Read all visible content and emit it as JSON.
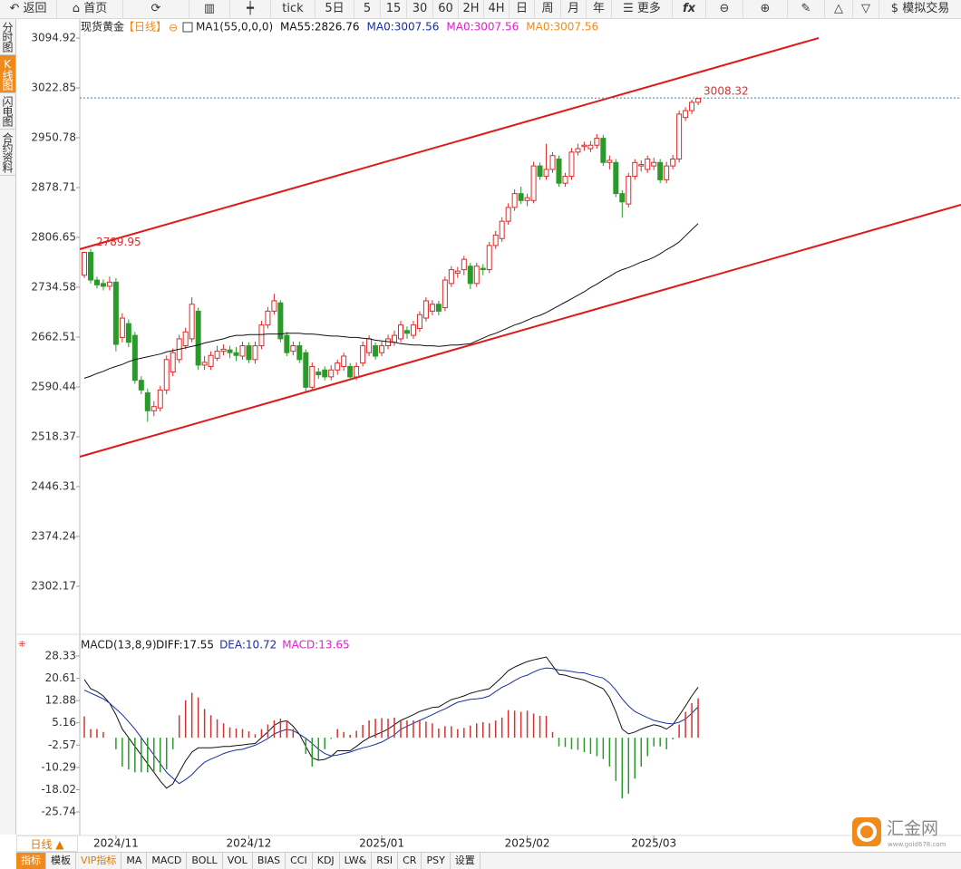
{
  "toolbar": [
    "返回",
    "首页",
    "tick",
    "5日",
    "5",
    "15",
    "30",
    "60",
    "2H",
    "4H",
    "日",
    "周",
    "月",
    "年",
    "更多",
    "fx",
    "模拟交易"
  ],
  "sidebar": [
    "分时图",
    "K线图",
    "闪电图",
    "合约资料"
  ],
  "period_tab": "日线 ▲",
  "indicator_tabs": [
    "指标",
    "模板",
    "VIP指标",
    "MA",
    "MACD",
    "BOLL",
    "VOL",
    "BIAS",
    "CCI",
    "KDJ",
    "LW&",
    "RSI",
    "CR",
    "PSY",
    "设置"
  ],
  "logo": {
    "name": "汇金网",
    "url": "www.gold678.com"
  },
  "chart_data": [
    {
      "type": "candlestick",
      "title": "现货黄金",
      "period": "【日线】",
      "indicator": "MA1(55,0,0,0)",
      "up_color": "#e02828",
      "down_color": "#2a9a2a",
      "categories": [
        null,
        null,
        null,
        null,
        null,
        "2024/11",
        null,
        null,
        null,
        null,
        null,
        null,
        null,
        null,
        null,
        null,
        null,
        null,
        null,
        null,
        null,
        null,
        null,
        null,
        null,
        null,
        "2024/12",
        null,
        null,
        null,
        null,
        null,
        null,
        null,
        null,
        null,
        null,
        null,
        null,
        null,
        null,
        null,
        null,
        null,
        null,
        null,
        null,
        "2025/01",
        null,
        null,
        null,
        null,
        null,
        null,
        null,
        null,
        null,
        null,
        null,
        null,
        null,
        null,
        null,
        null,
        null,
        null,
        null,
        null,
        null,
        null,
        "2025/02",
        null,
        null,
        null,
        null,
        null,
        null,
        null,
        null,
        null,
        null,
        null,
        null,
        null,
        null,
        null,
        null,
        null,
        null,
        null,
        "2025/03",
        null,
        null,
        null,
        null,
        null,
        null,
        null
      ],
      "open": [
        2752,
        2785,
        2745,
        2740,
        2736,
        2742,
        2662,
        2682,
        2665,
        2600,
        2582,
        2556,
        2560,
        2586,
        2612,
        2630,
        2650,
        2660,
        2700,
        2622,
        2620,
        2632,
        2642,
        2644,
        2640,
        2635,
        2650,
        2630,
        2650,
        2680,
        2700,
        2712,
        2665,
        2642,
        2650,
        2640,
        2590,
        2612,
        2615,
        2605,
        2615,
        2620,
        2620,
        2605,
        2625,
        2640,
        2650,
        2640,
        2650,
        2655,
        2660,
        2672,
        2665,
        2675,
        2690,
        2700,
        2710,
        2705,
        2740,
        2755,
        2760,
        2765,
        2740,
        2762,
        2760,
        2795,
        2805,
        2830,
        2850,
        2870,
        2860,
        2860,
        2910,
        2895,
        2905,
        2920,
        2885,
        2895,
        2930,
        2938,
        2935,
        2940,
        2950,
        2915,
        2915,
        2870,
        2855,
        2895,
        2910,
        2905,
        2910,
        2915,
        2890,
        2910,
        2920,
        2980,
        2990,
        3002
      ],
      "high": [
        2786,
        2789.95,
        2750,
        2746,
        2750,
        2748,
        2697,
        2688,
        2670,
        2606,
        2588,
        2570,
        2592,
        2636,
        2646,
        2666,
        2676,
        2720,
        2705,
        2635,
        2642,
        2650,
        2652,
        2650,
        2648,
        2656,
        2655,
        2656,
        2686,
        2706,
        2725,
        2716,
        2670,
        2656,
        2656,
        2645,
        2626,
        2618,
        2620,
        2622,
        2630,
        2640,
        2625,
        2626,
        2656,
        2665,
        2655,
        2656,
        2666,
        2672,
        2686,
        2678,
        2686,
        2700,
        2720,
        2716,
        2715,
        2750,
        2765,
        2764,
        2780,
        2770,
        2770,
        2768,
        2800,
        2816,
        2836,
        2856,
        2876,
        2880,
        2870,
        2916,
        2915,
        2942,
        2930,
        2925,
        2900,
        2936,
        2942,
        2945,
        2946,
        2956,
        2955,
        2925,
        2920,
        2875,
        2900,
        2920,
        2918,
        2925,
        2922,
        2920,
        2916,
        2926,
        2990,
        2995,
        3006,
        3008.32
      ],
      "low": [
        2748,
        2740,
        2733,
        2730,
        2730,
        2642,
        2655,
        2648,
        2595,
        2580,
        2540,
        2548,
        2555,
        2580,
        2606,
        2625,
        2645,
        2655,
        2615,
        2615,
        2615,
        2628,
        2636,
        2632,
        2628,
        2630,
        2625,
        2624,
        2645,
        2675,
        2695,
        2655,
        2635,
        2636,
        2625,
        2584,
        2585,
        2602,
        2600,
        2600,
        2608,
        2614,
        2600,
        2600,
        2620,
        2635,
        2630,
        2635,
        2645,
        2650,
        2655,
        2660,
        2660,
        2670,
        2685,
        2694,
        2694,
        2700,
        2735,
        2748,
        2752,
        2732,
        2735,
        2752,
        2755,
        2790,
        2800,
        2825,
        2845,
        2855,
        2852,
        2856,
        2890,
        2890,
        2900,
        2880,
        2880,
        2890,
        2925,
        2932,
        2930,
        2935,
        2910,
        2905,
        2865,
        2835,
        2850,
        2890,
        2902,
        2900,
        2904,
        2885,
        2885,
        2905,
        2915,
        2975,
        2985,
        2998
      ],
      "close": [
        2785,
        2745,
        2738,
        2736,
        2742,
        2652,
        2690,
        2655,
        2600,
        2586,
        2556,
        2562,
        2586,
        2630,
        2640,
        2660,
        2670,
        2710,
        2622,
        2626,
        2636,
        2642,
        2645,
        2640,
        2636,
        2650,
        2630,
        2650,
        2680,
        2700,
        2715,
        2660,
        2640,
        2650,
        2630,
        2590,
        2620,
        2608,
        2605,
        2615,
        2625,
        2635,
        2605,
        2620,
        2650,
        2660,
        2635,
        2650,
        2660,
        2665,
        2680,
        2668,
        2680,
        2695,
        2715,
        2710,
        2700,
        2745,
        2760,
        2758,
        2775,
        2740,
        2765,
        2760,
        2795,
        2810,
        2830,
        2850,
        2870,
        2860,
        2864,
        2910,
        2895,
        2905,
        2925,
        2885,
        2895,
        2930,
        2935,
        2940,
        2940,
        2950,
        2915,
        2918,
        2870,
        2858,
        2895,
        2915,
        2912,
        2920,
        2915,
        2890,
        2910,
        2920,
        2985,
        2990,
        3002,
        3007.56
      ],
      "series": [
        {
          "name": "MA55:2826.76",
          "color": "#111111",
          "values": [
            2603,
            2606,
            2610,
            2613,
            2617,
            2620,
            2623,
            2627,
            2630,
            2632,
            2634,
            2636,
            2638,
            2641,
            2643,
            2645,
            2647,
            2649,
            2651,
            2654,
            2656,
            2658,
            2660,
            2663,
            2665,
            2665,
            2666,
            2666,
            2666,
            2667,
            2667,
            2667,
            2668,
            2668,
            2668,
            2667,
            2667,
            2666,
            2665,
            2664,
            2664,
            2663,
            2662,
            2662,
            2661,
            2660,
            2658,
            2657,
            2656,
            2655,
            2653,
            2652,
            2651,
            2651,
            2650,
            2650,
            2649,
            2650,
            2651,
            2651,
            2652,
            2653,
            2657,
            2661,
            2665,
            2668,
            2672,
            2676,
            2680,
            2683,
            2687,
            2691,
            2694,
            2698,
            2703,
            2708,
            2713,
            2718,
            2723,
            2728,
            2734,
            2739,
            2745,
            2750,
            2756,
            2760,
            2763,
            2767,
            2771,
            2774,
            2778,
            2783,
            2789,
            2794,
            2800,
            2809,
            2818,
            2826.76
          ]
        }
      ],
      "indicator_labels": [
        {
          "text": "MA0:3007.56",
          "color": "#1a2fa0"
        },
        {
          "text": "MA0:3007.56",
          "color": "#e020d0"
        },
        {
          "text": "MA0:3007.56",
          "color": "#f08a1c"
        }
      ],
      "ylim": [
        2232.73,
        3123.75
      ],
      "yticks": [
        3094.92,
        3022.85,
        2950.78,
        2878.71,
        2806.65,
        2734.58,
        2662.51,
        2590.44,
        2518.37,
        2446.31,
        2374.24,
        2302.17
      ]
    },
    {
      "type": "macd",
      "title": "MACD(13,8,9)",
      "series": [
        {
          "name": "DIFF:17.55",
          "color": "#111111",
          "values": [
            20.2,
            17,
            16,
            14.5,
            12,
            8,
            3,
            0,
            -3,
            -6,
            -9,
            -12,
            -15,
            -17.5,
            -16,
            -12,
            -8,
            -5,
            -3.5,
            -3.5,
            -3.5,
            -3.3,
            -3,
            -3,
            -2.7,
            -2.5,
            -2.2,
            -2,
            0,
            2,
            4.3,
            5.5,
            5.9,
            4,
            1.2,
            -3,
            -7,
            -7.8,
            -7.5,
            -6.5,
            -4.5,
            -4.5,
            -4.5,
            -3,
            -1.3,
            0,
            1,
            1.9,
            3,
            4.5,
            6,
            7,
            8,
            9.1,
            9.8,
            10.5,
            10.7,
            12,
            13.2,
            13.8,
            14.5,
            15.4,
            16,
            16.5,
            17,
            19,
            21,
            23.3,
            24.5,
            25.5,
            26.4,
            27,
            27.5,
            28,
            25,
            22,
            21.7,
            21,
            20.5,
            20,
            19,
            18,
            17,
            14,
            9,
            3,
            1.3,
            2,
            3,
            3.8,
            4.5,
            4,
            3,
            4.5,
            7.7,
            11,
            14.5,
            17.55
          ]
        },
        {
          "name": "DEA:10.72",
          "color": "#1a2fa0",
          "values": [
            16.5,
            15.5,
            14.5,
            13.5,
            12,
            10,
            8,
            5.5,
            3,
            0,
            -3,
            -6,
            -9,
            -12,
            -14,
            -15.9,
            -14.5,
            -12.8,
            -10.5,
            -8.5,
            -7.4,
            -6.5,
            -5.5,
            -4.8,
            -4.3,
            -4,
            -3.3,
            -2.6,
            -1.5,
            -0.3,
            1.3,
            2.2,
            2.9,
            2.5,
            1.2,
            -0.2,
            -2,
            -4,
            -5.5,
            -6.3,
            -6,
            -5.5,
            -5,
            -4.2,
            -3.5,
            -3,
            -2.3,
            -1.5,
            -0.3,
            1,
            2.9,
            4,
            5,
            6,
            7,
            8,
            9.1,
            10,
            11.2,
            12.3,
            12.8,
            13.3,
            13.5,
            13.8,
            14.5,
            16,
            17.5,
            18.5,
            19.8,
            21,
            21.7,
            22.8,
            23.7,
            24.2,
            24,
            23.5,
            23.3,
            23,
            22.6,
            22.5,
            21.8,
            21.2,
            20.7,
            19,
            16.5,
            13.5,
            11,
            9.1,
            8,
            7,
            6,
            5.5,
            5,
            4.8,
            5.4,
            6.5,
            8.5,
            10.72
          ]
        },
        {
          "name": "MACD:13.65",
          "color": "#e020d0",
          "up_color": "#d83030",
          "down_color": "#2a9a2a",
          "values": [
            7.4,
            3,
            3,
            2,
            0,
            -4,
            -10,
            -11,
            -12,
            -12,
            -12,
            -12,
            -12,
            -11,
            -4,
            7.8,
            13,
            15.6,
            14,
            10,
            7.8,
            6.4,
            5,
            3.6,
            3.2,
            3,
            2.2,
            1.2,
            3,
            4.6,
            6,
            6.6,
            6,
            3,
            0,
            -5.6,
            -10,
            -7.6,
            -4,
            -0.4,
            3,
            2,
            1,
            2.4,
            4.4,
            6,
            6.6,
            6.8,
            6.6,
            7,
            6.2,
            6,
            6,
            6.2,
            5.6,
            5,
            3.2,
            4,
            4,
            3,
            3.4,
            4.2,
            5,
            5.4,
            5,
            6,
            7,
            9.6,
            9.4,
            9,
            9.4,
            8.4,
            7.6,
            7.6,
            2,
            -3,
            -3.2,
            -4,
            -4.2,
            -5,
            -5.6,
            -6.4,
            -7.4,
            -10,
            -15,
            -21,
            -19.4,
            -14.2,
            -10,
            -6.4,
            -3,
            -3,
            -4,
            -0.6,
            4.6,
            9,
            12,
            13.65
          ]
        }
      ],
      "ylim": [
        -33.9,
        34.3
      ],
      "yticks": [
        28.33,
        20.61,
        12.88,
        5.16,
        -2.57,
        -10.29,
        -18.02,
        -25.74
      ]
    }
  ]
}
